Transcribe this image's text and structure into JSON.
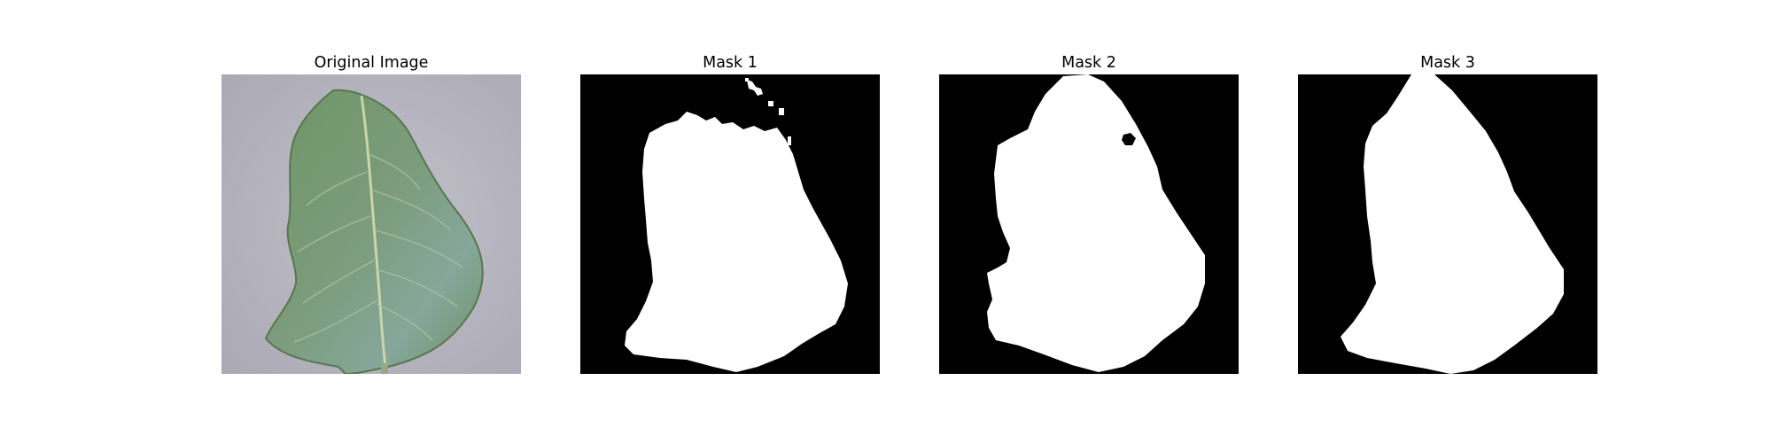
{
  "figure": {
    "panels": [
      {
        "title": "Original Image",
        "content": "leaf-photo"
      },
      {
        "title": "Mask 1",
        "content": "segmentation-mask"
      },
      {
        "title": "Mask 2",
        "content": "segmentation-mask"
      },
      {
        "title": "Mask 3",
        "content": "segmentation-mask"
      }
    ],
    "colors": {
      "background_photo": "#b9b8c1",
      "leaf": "#6f9068",
      "leaf_light": "#87a58a",
      "vein": "#c9d3a5",
      "mask_background": "#000000",
      "mask_foreground": "#ffffff"
    }
  }
}
